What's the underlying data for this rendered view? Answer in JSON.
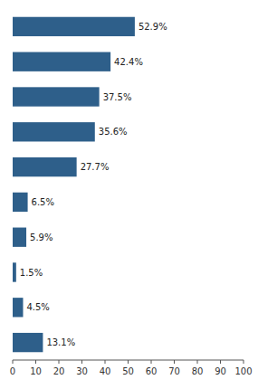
{
  "chart_data": {
    "type": "bar",
    "orientation": "horizontal",
    "values": [
      52.9,
      42.4,
      37.5,
      35.6,
      27.7,
      6.5,
      5.9,
      1.5,
      4.5,
      13.1
    ],
    "value_labels": [
      "52.9%",
      "42.4%",
      "37.5%",
      "35.6%",
      "27.7%",
      "6.5%",
      "5.9%",
      "1.5%",
      "4.5%",
      "13.1%"
    ],
    "data_labels": true,
    "color": "#2E5F8A",
    "xlim": [
      0,
      100
    ],
    "xticks": [
      0,
      10,
      20,
      30,
      40,
      50,
      60,
      70,
      80,
      90,
      100
    ],
    "grid": false,
    "tick_labels": "x"
  }
}
